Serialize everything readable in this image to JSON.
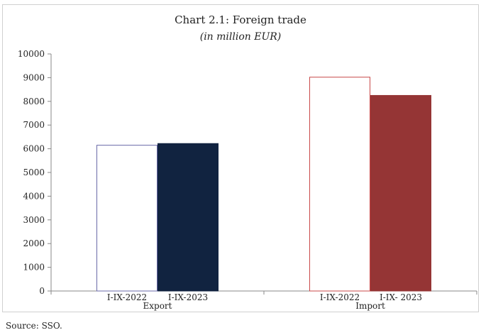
{
  "chart_data": {
    "type": "bar",
    "title": "Chart 2.1: Foreign trade",
    "subtitle": "(in million EUR)",
    "xlabel": "",
    "ylabel": "",
    "ylim": [
      0,
      10000
    ],
    "yticks": [
      0,
      1000,
      2000,
      3000,
      4000,
      5000,
      6000,
      7000,
      8000,
      9000,
      10000
    ],
    "grid": false,
    "groups": [
      {
        "name": "Export",
        "bars": [
          {
            "label": "I-IX-2022",
            "value": 6150,
            "fill": "#ffffff",
            "stroke": "#6a6aa8"
          },
          {
            "label": "I-IX-2023",
            "value": 6220,
            "fill": "#112340",
            "stroke": "#112340"
          }
        ]
      },
      {
        "name": "Import",
        "bars": [
          {
            "label": "I-IX-2022",
            "value": 9020,
            "fill": "#ffffff",
            "stroke": "#c84848"
          },
          {
            "label": "I-IX- 2023",
            "value": 8250,
            "fill": "#953535",
            "stroke": "#953535"
          }
        ]
      }
    ]
  },
  "source": "Source: SSO."
}
